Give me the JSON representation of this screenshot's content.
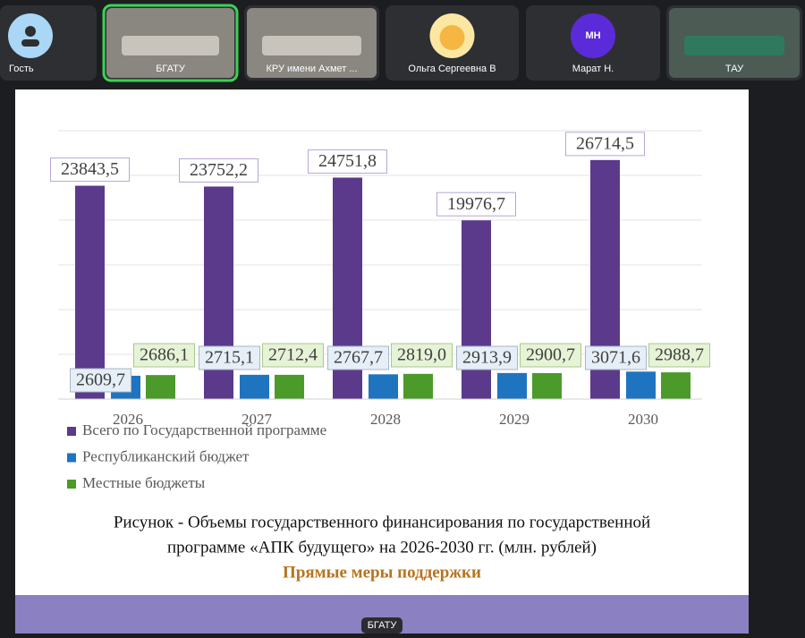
{
  "participants": [
    {
      "name": "Гость"
    },
    {
      "name": "БГАТУ"
    },
    {
      "name": "КРУ имени Ахмет ..."
    },
    {
      "name": "Ольга Сергеевна В"
    },
    {
      "name": "Марат Н.",
      "initials": "МН"
    },
    {
      "name": "ТАУ"
    }
  ],
  "chart_data": {
    "type": "bar",
    "categories": [
      "2026",
      "2027",
      "2028",
      "2029",
      "2030"
    ],
    "series": [
      {
        "name": "Всего по Государственной программе",
        "color": "#5b3a8c",
        "values": [
          23843.5,
          23752.2,
          24751.8,
          19976.7,
          26714.5
        ],
        "value_labels": [
          "23843,5",
          "23752,2",
          "24751,8",
          "19976,7",
          "26714,5"
        ]
      },
      {
        "name": "Республиканский бюджет",
        "color": "#1f74c0",
        "values": [
          2609.7,
          2715.1,
          2767.7,
          2913.9,
          3071.6
        ],
        "value_labels": [
          "2609,7",
          "2715,1",
          "2767,7",
          "2913,9",
          "3071,6"
        ]
      },
      {
        "name": "Местные бюджеты",
        "color": "#4c9a2a",
        "values": [
          2686.1,
          2712.4,
          2819.0,
          2900.7,
          2988.7
        ],
        "value_labels": [
          "2686,1",
          "2712,4",
          "2819,0",
          "2900,7",
          "2988,7"
        ]
      }
    ],
    "ylim": [
      0,
      30000
    ],
    "yticks": [
      0,
      5000,
      10000,
      15000,
      20000,
      25000,
      30000
    ],
    "grid": true,
    "caption": [
      "Рисунок - Объемы государственного финансирования по государственной",
      "программе «АПК будущего» на 2026-2030 гг. (млн. рублей)"
    ],
    "subtitle": "Прямые меры поддержки"
  },
  "presenter_label": "БГАТУ"
}
